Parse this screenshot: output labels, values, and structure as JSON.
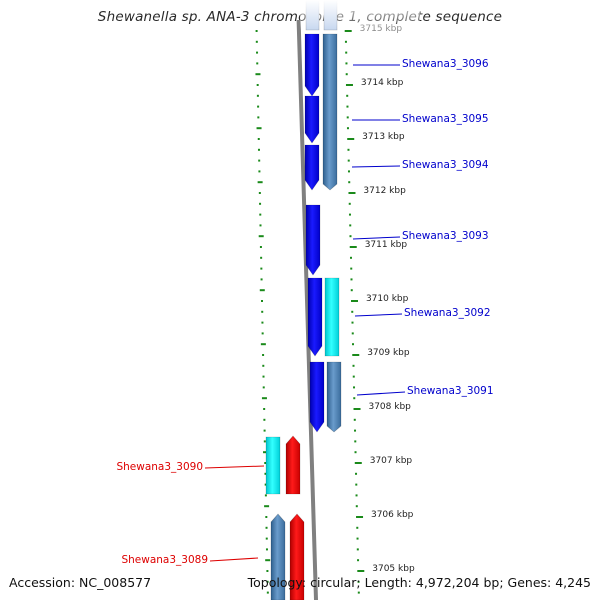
{
  "title": "Shewanella sp. ANA-3 chromosome 1, complete sequence",
  "footer": {
    "accession": "Accession: NC_008577",
    "summary": "Topology: circular; Length: 4,972,204 bp; Genes: 4,245"
  },
  "colors": {
    "forward_cds": "#0000ee",
    "reverse_cds": "#ee0000",
    "forward_gene": "#4a7fb0",
    "reverse_gene": "#4a7fb0",
    "cyan_gene": "#00e5ee",
    "tick": "#1a8a1a",
    "backbone": "#808080",
    "label_forward": "#0000cc",
    "label_reverse": "#dd0000"
  },
  "ticks": [
    {
      "label": "3715 kbp"
    },
    {
      "label": "3714 kbp"
    },
    {
      "label": "3713 kbp"
    },
    {
      "label": "3712 kbp"
    },
    {
      "label": "3711 kbp"
    },
    {
      "label": "3710 kbp"
    },
    {
      "label": "3709 kbp"
    },
    {
      "label": "3708 kbp"
    },
    {
      "label": "3707 kbp"
    },
    {
      "label": "3706 kbp"
    },
    {
      "label": "3705 kbp"
    }
  ],
  "gene_labels": [
    {
      "text": "Shewana3_3096",
      "strand": "forward"
    },
    {
      "text": "Shewana3_3095",
      "strand": "forward"
    },
    {
      "text": "Shewana3_3094",
      "strand": "forward"
    },
    {
      "text": "Shewana3_3093",
      "strand": "forward"
    },
    {
      "text": "Shewana3_3092",
      "strand": "forward"
    },
    {
      "text": "Shewana3_3091",
      "strand": "forward"
    },
    {
      "text": "Shewana3_3090",
      "strand": "reverse"
    },
    {
      "text": "Shewana3_3089",
      "strand": "reverse"
    }
  ]
}
